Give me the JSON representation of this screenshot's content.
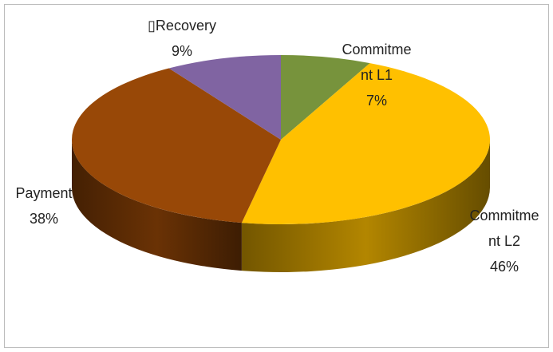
{
  "chart_data": {
    "type": "pie",
    "categories": [
      "Commitment L1",
      "Commitment L2",
      "Payment",
      "▯Recovery"
    ],
    "values": [
      7,
      46,
      38,
      9
    ],
    "value_labels": [
      "7%",
      "46%",
      "38%",
      "9%"
    ],
    "colors": [
      "#77933c",
      "#ffc000",
      "#984807",
      "#8064a2"
    ]
  }
}
